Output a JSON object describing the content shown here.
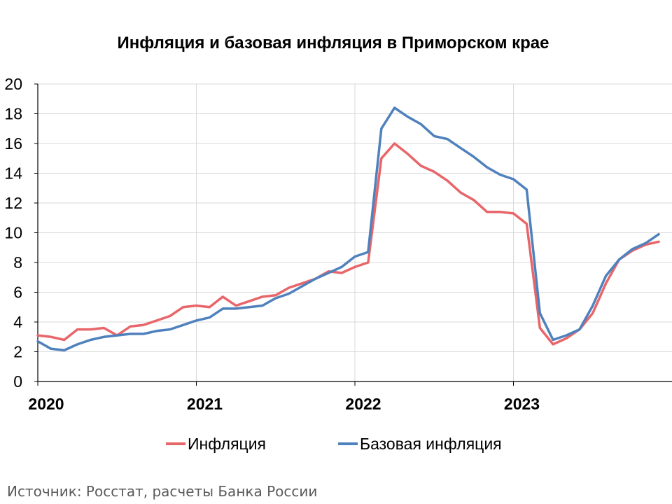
{
  "source": "Источник: Росстат, расчеты Банка России",
  "chart_data": {
    "type": "line",
    "title": "Инфляция и базовая инфляция в Приморском крае",
    "xlabel": "",
    "ylabel": "",
    "ylim": [
      0,
      20
    ],
    "yticks": [
      0,
      2,
      4,
      6,
      8,
      10,
      12,
      14,
      16,
      18,
      20
    ],
    "xticks": [
      {
        "index": 0,
        "label": "2020"
      },
      {
        "index": 12,
        "label": "2021"
      },
      {
        "index": 24,
        "label": "2022"
      },
      {
        "index": 36,
        "label": "2023"
      }
    ],
    "grid": true,
    "legend": "bottom",
    "x": [
      "2020-01",
      "2020-02",
      "2020-03",
      "2020-04",
      "2020-05",
      "2020-06",
      "2020-07",
      "2020-08",
      "2020-09",
      "2020-10",
      "2020-11",
      "2020-12",
      "2021-01",
      "2021-02",
      "2021-03",
      "2021-04",
      "2021-05",
      "2021-06",
      "2021-07",
      "2021-08",
      "2021-09",
      "2021-10",
      "2021-11",
      "2021-12",
      "2022-01",
      "2022-02",
      "2022-03",
      "2022-04",
      "2022-05",
      "2022-06",
      "2022-07",
      "2022-08",
      "2022-09",
      "2022-10",
      "2022-11",
      "2022-12",
      "2023-01",
      "2023-02",
      "2023-03",
      "2023-04",
      "2023-05",
      "2023-06",
      "2023-07",
      "2023-08",
      "2023-09",
      "2023-10",
      "2023-11",
      "2023-12"
    ],
    "series": [
      {
        "name": "Инфляция",
        "color": "#E8666A",
        "values": [
          3.1,
          3.0,
          2.8,
          3.5,
          3.5,
          3.6,
          3.1,
          3.7,
          3.8,
          4.1,
          4.4,
          5.0,
          5.1,
          5.0,
          5.7,
          5.1,
          5.4,
          5.7,
          5.8,
          6.3,
          6.6,
          6.9,
          7.4,
          7.3,
          7.7,
          8.0,
          15.0,
          16.0,
          15.3,
          14.5,
          14.1,
          13.5,
          12.7,
          12.2,
          11.4,
          11.4,
          11.3,
          10.6,
          3.6,
          2.5,
          2.9,
          3.5,
          4.6,
          6.6,
          8.2,
          8.8,
          9.2,
          9.4
        ]
      },
      {
        "name": "Базовая инфляция",
        "color": "#4F81BD",
        "values": [
          2.7,
          2.2,
          2.1,
          2.5,
          2.8,
          3.0,
          3.1,
          3.2,
          3.2,
          3.4,
          3.5,
          3.8,
          4.1,
          4.3,
          4.9,
          4.9,
          5.0,
          5.1,
          5.6,
          5.9,
          6.4,
          6.9,
          7.3,
          7.7,
          8.4,
          8.7,
          17.0,
          18.4,
          17.8,
          17.3,
          16.5,
          16.3,
          15.7,
          15.1,
          14.4,
          13.9,
          13.6,
          12.9,
          4.6,
          2.8,
          3.1,
          3.5,
          5.1,
          7.1,
          8.2,
          8.9,
          9.3,
          9.9
        ]
      }
    ]
  }
}
